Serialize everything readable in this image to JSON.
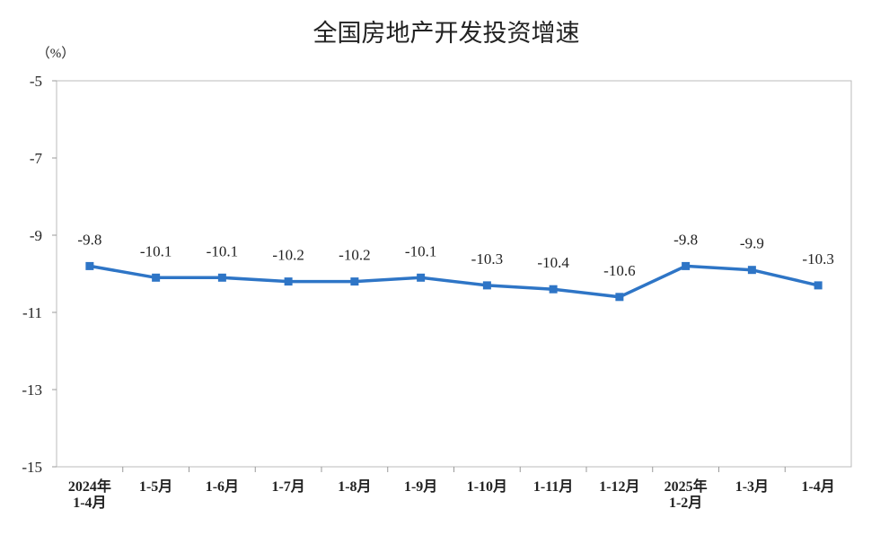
{
  "chart_data": {
    "type": "line",
    "title": "全国房地产开发投资增速",
    "y_unit": "（%）",
    "categories": [
      "2024年\n1-4月",
      "1-5月",
      "1-6月",
      "1-7月",
      "1-8月",
      "1-9月",
      "1-10月",
      "1-11月",
      "1-12月",
      "2025年\n1-2月",
      "1-3月",
      "1-4月"
    ],
    "series": [
      {
        "name": "全国房地产开发投资增速",
        "color": "#2e75c6",
        "values": [
          -9.8,
          -10.1,
          -10.1,
          -10.2,
          -10.2,
          -10.1,
          -10.3,
          -10.4,
          -10.6,
          -9.8,
          -9.9,
          -10.3
        ]
      }
    ],
    "ylim": [
      -15,
      -5
    ],
    "yticks": [
      -15,
      -13,
      -11,
      -9,
      -7,
      -5
    ],
    "grid": false
  }
}
